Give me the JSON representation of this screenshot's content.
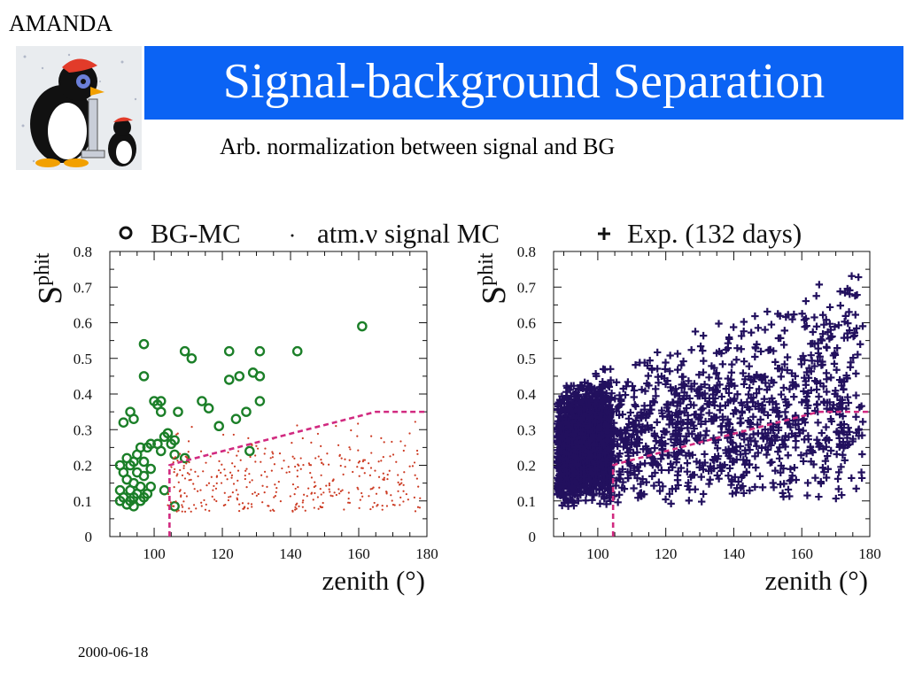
{
  "header": {
    "corner_label": "AMANDA",
    "title": "Signal-background Separation",
    "subtitle": "Arb. normalization between signal and BG"
  },
  "footer": {
    "date": "2000-06-18"
  },
  "colors": {
    "title_bar": "#0b63f4",
    "bg_mc": "#1b7f28",
    "signal_mc": "#cc3a22",
    "experiment": "#22105e",
    "cut_line": "#d12a80"
  },
  "chart_data": [
    {
      "type": "scatter",
      "panel": "left",
      "xlabel": "zenith",
      "xlabel_unit": "(°)",
      "ylabel": "S",
      "ylabel_sup": "phit",
      "xlim": [
        87,
        180
      ],
      "ylim": [
        0,
        0.8
      ],
      "x_ticks": [
        "100",
        "120",
        "140",
        "160",
        "180"
      ],
      "y_ticks": [
        "0",
        "0.1",
        "0.2",
        "0.3",
        "0.4",
        "0.5",
        "0.6",
        "0.7",
        "0.8"
      ],
      "legend": [
        {
          "symbol": "o",
          "label": "BG-MC"
        },
        {
          "symbol": "·",
          "label": "atm.ν signal MC"
        }
      ],
      "cut_line": {
        "x": [
          104.5,
          104.5,
          108,
          165,
          180
        ],
        "y": [
          0,
          0.2,
          0.21,
          0.35,
          0.35
        ]
      },
      "series": [
        {
          "name": "BG-MC",
          "marker": "circle",
          "points": [
            [
              161,
              0.59
            ],
            [
              97,
              0.54
            ],
            [
              142,
              0.52
            ],
            [
              122,
              0.52
            ],
            [
              131,
              0.52
            ],
            [
              109,
              0.52
            ],
            [
              111,
              0.5
            ],
            [
              97,
              0.45
            ],
            [
              129,
              0.46
            ],
            [
              125,
              0.45
            ],
            [
              122,
              0.44
            ],
            [
              131,
              0.45
            ],
            [
              102,
              0.38
            ],
            [
              100,
              0.38
            ],
            [
              101,
              0.37
            ],
            [
              114,
              0.38
            ],
            [
              131,
              0.38
            ],
            [
              107,
              0.35
            ],
            [
              116,
              0.36
            ],
            [
              93,
              0.35
            ],
            [
              102,
              0.35
            ],
            [
              127,
              0.35
            ],
            [
              124,
              0.33
            ],
            [
              94,
              0.33
            ],
            [
              91,
              0.32
            ],
            [
              119,
              0.31
            ],
            [
              104,
              0.29
            ],
            [
              103,
              0.28
            ],
            [
              106,
              0.27
            ],
            [
              105,
              0.26
            ],
            [
              101,
              0.26
            ],
            [
              98,
              0.25
            ],
            [
              99,
              0.26
            ],
            [
              102,
              0.24
            ],
            [
              96,
              0.25
            ],
            [
              128,
              0.24
            ],
            [
              106,
              0.23
            ],
            [
              109,
              0.22
            ],
            [
              95,
              0.23
            ],
            [
              92,
              0.22
            ],
            [
              94,
              0.21
            ],
            [
              97,
              0.21
            ],
            [
              90,
              0.2
            ],
            [
              93,
              0.2
            ],
            [
              99,
              0.19
            ],
            [
              91,
              0.18
            ],
            [
              95,
              0.18
            ],
            [
              97,
              0.17
            ],
            [
              92,
              0.16
            ],
            [
              94,
              0.15
            ],
            [
              96,
              0.14
            ],
            [
              99,
              0.14
            ],
            [
              90,
              0.13
            ],
            [
              93,
              0.13
            ],
            [
              103,
              0.13
            ],
            [
              95,
              0.12
            ],
            [
              98,
              0.12
            ],
            [
              91,
              0.11
            ],
            [
              94,
              0.11
            ],
            [
              97,
              0.11
            ],
            [
              90,
              0.1
            ],
            [
              93,
              0.1
            ],
            [
              96,
              0.1
            ],
            [
              92,
              0.09
            ],
            [
              94,
              0.085
            ],
            [
              106,
              0.085
            ]
          ]
        },
        {
          "name": "atm.ν signal MC",
          "marker": "dot",
          "generated": {
            "count": 380,
            "x_range": [
              104,
              178
            ],
            "y_range": [
              0.07,
              0.33
            ],
            "seed": 11
          }
        }
      ]
    },
    {
      "type": "scatter",
      "panel": "right",
      "xlabel": "zenith",
      "xlabel_unit": "(°)",
      "ylabel": "S",
      "ylabel_sup": "phit",
      "xlim": [
        87,
        180
      ],
      "ylim": [
        0,
        0.8
      ],
      "x_ticks": [
        "100",
        "120",
        "140",
        "160",
        "180"
      ],
      "y_ticks": [
        "0",
        "0.1",
        "0.2",
        "0.3",
        "0.4",
        "0.5",
        "0.6",
        "0.7",
        "0.8"
      ],
      "legend": [
        {
          "symbol": "+",
          "label": "Exp. (132 days)"
        }
      ],
      "cut_line": {
        "x": [
          104.5,
          104.5,
          108,
          165,
          180
        ],
        "y": [
          0,
          0.2,
          0.21,
          0.35,
          0.35
        ]
      },
      "series": [
        {
          "name": "Exp. (132 days)",
          "marker": "plus",
          "generated": {
            "count": 2600,
            "x_range": [
              88,
              178
            ],
            "y_range": [
              0.07,
              0.74
            ],
            "seed": 5
          }
        }
      ]
    }
  ]
}
